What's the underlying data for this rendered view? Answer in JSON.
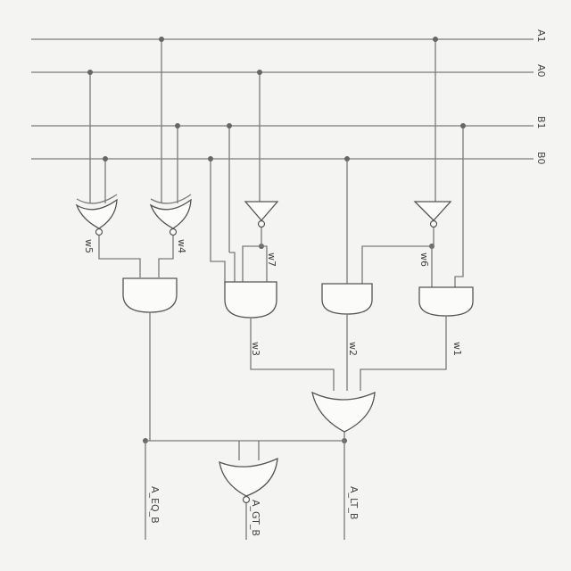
{
  "inputs": {
    "a1": "A1",
    "a0": "A0",
    "b1": "B1",
    "b0": "B0"
  },
  "wires": {
    "w1": "w1",
    "w2": "w2",
    "w3": "w3",
    "w4": "w4",
    "w5": "w5",
    "w6": "w6",
    "w7": "w7"
  },
  "outputs": {
    "a_eq_b": "A_EQ_B",
    "a_lt_b": "A_LT_B",
    "a_gt_b": "A_GT_B"
  },
  "style": {
    "paper": "#f4f4f2",
    "ink": "#555555"
  }
}
